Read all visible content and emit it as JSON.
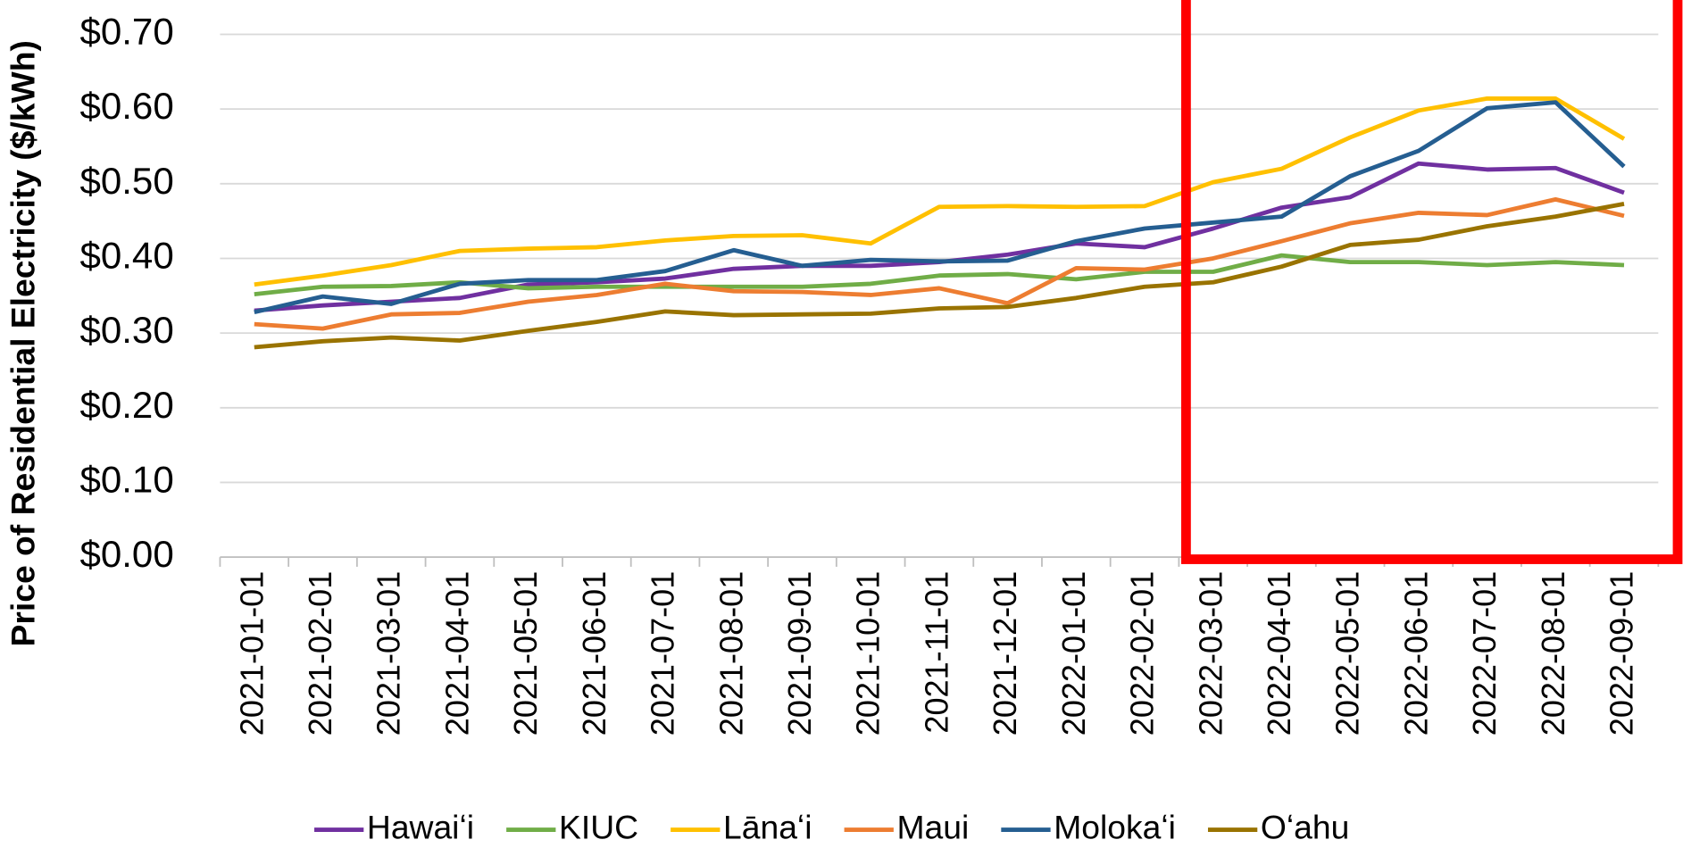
{
  "chart_data": {
    "type": "line",
    "y_label": "Price of Residential Electricity ($/kWh)",
    "categories": [
      "2021-01-01",
      "2021-02-01",
      "2021-03-01",
      "2021-04-01",
      "2021-05-01",
      "2021-06-01",
      "2021-07-01",
      "2021-08-01",
      "2021-09-01",
      "2021-10-01",
      "2021-11-01",
      "2021-12-01",
      "2022-01-01",
      "2022-02-01",
      "2022-03-01",
      "2022-04-01",
      "2022-05-01",
      "2022-06-01",
      "2022-07-01",
      "2022-08-01",
      "2022-09-01"
    ],
    "series": [
      {
        "name": "Hawaiʻi",
        "color": "#7030a0",
        "values": [
          0.33,
          0.337,
          0.342,
          0.347,
          0.365,
          0.368,
          0.373,
          0.386,
          0.39,
          0.39,
          0.395,
          0.405,
          0.42,
          0.415,
          0.44,
          0.468,
          0.482,
          0.527,
          0.519,
          0.521,
          0.488
        ]
      },
      {
        "name": "KIUC",
        "color": "#70ad47",
        "values": [
          0.352,
          0.362,
          0.363,
          0.368,
          0.36,
          0.362,
          0.362,
          0.362,
          0.362,
          0.366,
          0.377,
          0.379,
          0.372,
          0.382,
          0.382,
          0.404,
          0.395,
          0.395,
          0.391,
          0.395,
          0.391
        ]
      },
      {
        "name": "Lānaʻi",
        "color": "#ffc000",
        "values": [
          0.365,
          0.377,
          0.391,
          0.41,
          0.413,
          0.415,
          0.424,
          0.43,
          0.431,
          0.42,
          0.469,
          0.47,
          0.469,
          0.47,
          0.502,
          0.52,
          0.562,
          0.598,
          0.614,
          0.614,
          0.56
        ]
      },
      {
        "name": "Maui",
        "color": "#ed7d31",
        "values": [
          0.312,
          0.306,
          0.325,
          0.327,
          0.342,
          0.351,
          0.366,
          0.356,
          0.355,
          0.351,
          0.36,
          0.34,
          0.387,
          0.385,
          0.4,
          0.423,
          0.447,
          0.461,
          0.458,
          0.479,
          0.457
        ]
      },
      {
        "name": "Molokaʻi",
        "color": "#255e91",
        "values": [
          0.328,
          0.349,
          0.339,
          0.366,
          0.371,
          0.371,
          0.383,
          0.411,
          0.39,
          0.398,
          0.396,
          0.397,
          0.423,
          0.44,
          0.448,
          0.456,
          0.51,
          0.544,
          0.601,
          0.609,
          0.523
        ]
      },
      {
        "name": "Oʻahu",
        "color": "#997300",
        "values": [
          0.281,
          0.289,
          0.294,
          0.29,
          0.303,
          0.315,
          0.329,
          0.324,
          0.325,
          0.326,
          0.333,
          0.335,
          0.347,
          0.362,
          0.368,
          0.389,
          0.418,
          0.425,
          0.443,
          0.456,
          0.473
        ]
      }
    ],
    "ylim": [
      0,
      0.7
    ],
    "yticks": [
      {
        "value": 0,
        "label": "$0.00"
      },
      {
        "value": 0.1,
        "label": "$0.10"
      },
      {
        "value": 0.2,
        "label": "$0.20"
      },
      {
        "value": 0.3,
        "label": "$0.30"
      },
      {
        "value": 0.4,
        "label": "$0.40"
      },
      {
        "value": 0.5,
        "label": "$0.50"
      },
      {
        "value": 0.6,
        "label": "$0.60"
      },
      {
        "value": 0.7,
        "label": "$0.70"
      }
    ],
    "grid": true,
    "legend": "bottom"
  }
}
